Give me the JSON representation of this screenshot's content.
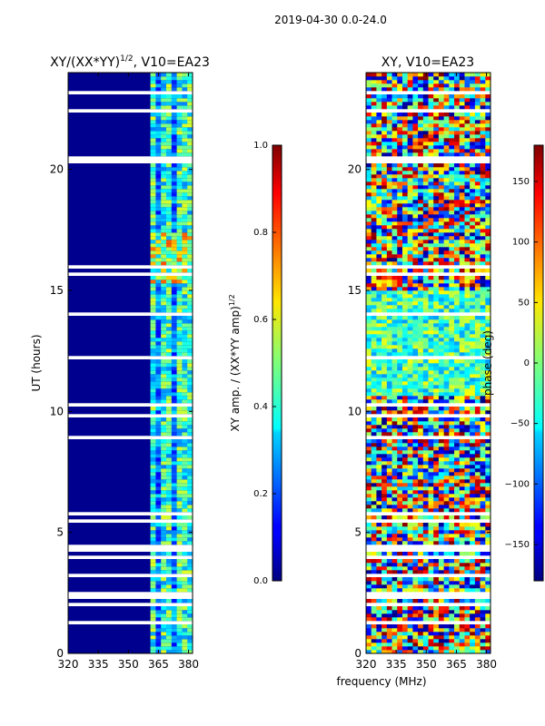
{
  "suptitle": "2019-04-30 0.0-24.0",
  "xlabel_shared": "frequency (MHz)",
  "colors": {
    "background_blue": "#00008f",
    "flag_white": "#ffffff",
    "frame": "#000000"
  },
  "chart_data": [
    {
      "type": "heatmap",
      "title": "XY/(XX*YY)",
      "title_sup": "1/2",
      "title_tail": ", V10=EA23",
      "xlabel": "",
      "ylabel": "UT (hours)",
      "xlim": [
        320,
        382
      ],
      "ylim": [
        0,
        24
      ],
      "xticks": [
        320,
        335,
        350,
        365,
        380
      ],
      "yticks": [
        0,
        5,
        10,
        15,
        20
      ],
      "colorbar": {
        "label": "XY amp. / (XX*YY amp)",
        "label_sup": "1/2",
        "range": [
          0.0,
          1.0
        ],
        "ticks": [
          "0.0",
          "0.2",
          "0.4",
          "0.6",
          "0.8",
          "1.0"
        ],
        "colormap": "jet"
      },
      "description_values": {
        "low_band_level": 0.02,
        "high_band_MHz": [
          360,
          382
        ],
        "high_band_level_range": [
          0.2,
          0.7
        ]
      }
    },
    {
      "type": "heatmap",
      "title": "XY, V10=EA23",
      "xlabel": "frequency (MHz)",
      "ylabel": "",
      "xlim": [
        320,
        382
      ],
      "ylim": [
        0,
        24
      ],
      "xticks": [
        320,
        335,
        350,
        365,
        380
      ],
      "yticks": [
        0,
        5,
        10,
        15,
        20
      ],
      "colorbar": {
        "label": "phase (deg)",
        "range": [
          -180,
          180
        ],
        "ticks": [
          "150",
          "100",
          "50",
          "0",
          "−50",
          "−100",
          "−150"
        ],
        "tick_values": [
          150,
          100,
          50,
          0,
          -50,
          -100,
          -150
        ],
        "colormap": "jet"
      }
    }
  ]
}
